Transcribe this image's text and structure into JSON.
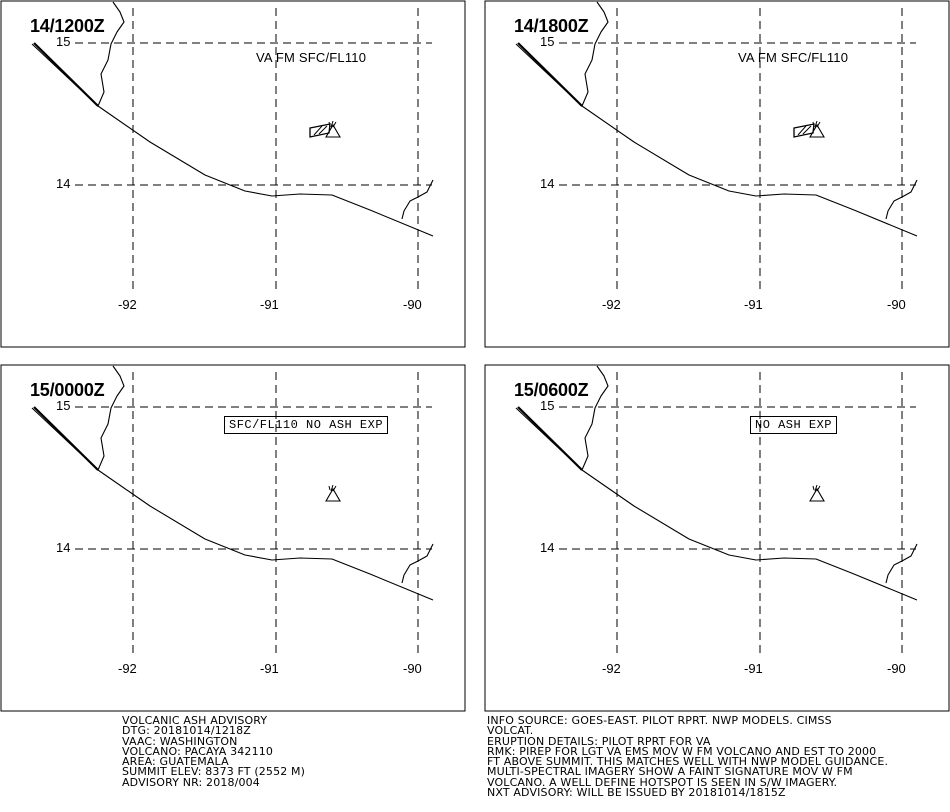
{
  "panels": [
    {
      "time": "14/1200Z",
      "note": "VA FM SFC/FL110",
      "note_boxed": false,
      "ash_polygon": true
    },
    {
      "time": "14/1800Z",
      "note": "VA FM SFC/FL110",
      "note_boxed": false,
      "ash_polygon": true
    },
    {
      "time": "15/0000Z",
      "note": "SFC/FL110 NO ASH EXP",
      "note_boxed": true,
      "ash_polygon": false
    },
    {
      "time": "15/0600Z",
      "note": "NO ASH EXP",
      "note_boxed": true,
      "ash_polygon": false
    }
  ],
  "grid": {
    "lat_labels": [
      "15",
      "14"
    ],
    "lon_labels": [
      "-92",
      "-91",
      "-90"
    ]
  },
  "advisory_left": [
    "VOLCANIC ASH ADVISORY",
    "DTG: 20181014/1218Z",
    "VAAC: WASHINGTON",
    "VOLCANO: PACAYA 342110",
    "AREA: GUATEMALA",
    "SUMMIT ELEV: 8373 FT (2552 M)",
    "ADVISORY NR: 2018/004"
  ],
  "advisory_right": [
    "INFO SOURCE: GOES-EAST. PILOT RPRT. NWP MODELS. CIMSS",
    "VOLCAT.",
    "ERUPTION DETAILS: PILOT RPRT FOR VA",
    "RMK: PIREP FOR LGT VA EMS MOV W FM VOLCANO AND EST TO 2000",
    "FT ABOVE SUMMIT. THIS MATCHES WELL WITH NWP MODEL GUIDANCE.",
    "MULTI-SPECTRAL IMAGERY SHOW A FAINT SIGNATURE MOV W FM",
    "VOLCANO. A WELL DEFINE HOTSPOT IS SEEN IN S/W IMAGERY.",
    "NXT ADVISORY: WILL BE ISSUED BY 20181014/1815Z"
  ]
}
